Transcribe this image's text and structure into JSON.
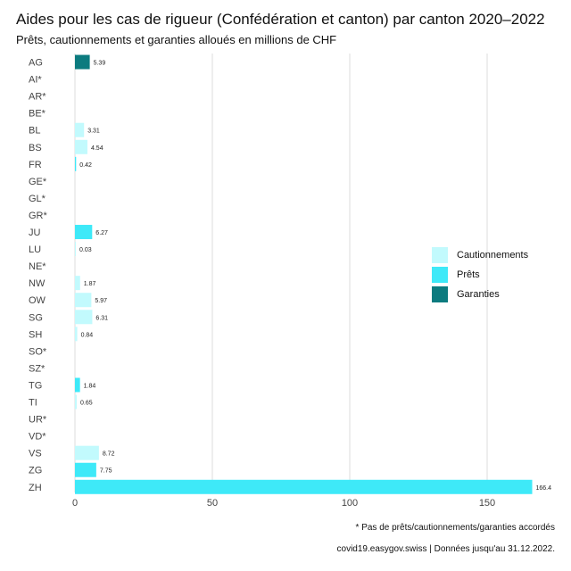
{
  "header": {
    "title": "Aides pour les cas de rigueur (Confédération et canton) par canton 2020–2022",
    "subtitle": "Prêts, cautionnements et garanties alloués en millions de CHF"
  },
  "footer": {
    "footnote": "* Pas de prêts/cautionnements/garanties accordés",
    "source": "covid19.easygov.swiss | Données jusqu'au 31.12.2022."
  },
  "legend": [
    {
      "name": "Cautionnements",
      "color": "#c2fafd"
    },
    {
      "name": "Prêts",
      "color": "#3ee9f8"
    },
    {
      "name": "Garanties",
      "color": "#0c7b7f"
    }
  ],
  "chart_data": {
    "type": "bar",
    "orientation": "horizontal",
    "xlim": [
      0,
      175
    ],
    "xticks": [
      0,
      50,
      100,
      150
    ],
    "grid": true,
    "legend_position": "right",
    "categories": [
      "AG",
      "AI*",
      "AR*",
      "BE*",
      "BL",
      "BS",
      "FR",
      "GE*",
      "GL*",
      "GR*",
      "JU",
      "LU",
      "NE*",
      "NW",
      "OW",
      "SG",
      "SH",
      "SO*",
      "SZ*",
      "TG",
      "TI",
      "UR*",
      "VD*",
      "VS",
      "ZG",
      "ZH"
    ],
    "bars": [
      {
        "category": "AG",
        "value": 5.39,
        "label": "5.39",
        "type": "Garanties"
      },
      {
        "category": "AI*",
        "value": 0,
        "label": "",
        "type": ""
      },
      {
        "category": "AR*",
        "value": 0,
        "label": "",
        "type": ""
      },
      {
        "category": "BE*",
        "value": 0,
        "label": "",
        "type": ""
      },
      {
        "category": "BL",
        "value": 3.31,
        "label": "3.31",
        "type": "Cautionnements"
      },
      {
        "category": "BS",
        "value": 4.54,
        "label": "4.54",
        "type": "Cautionnements"
      },
      {
        "category": "FR",
        "value": 0.42,
        "label": "0.42",
        "type": "Prêts"
      },
      {
        "category": "GE*",
        "value": 0,
        "label": "",
        "type": ""
      },
      {
        "category": "GL*",
        "value": 0,
        "label": "",
        "type": ""
      },
      {
        "category": "GR*",
        "value": 0,
        "label": "",
        "type": ""
      },
      {
        "category": "JU",
        "value": 6.27,
        "label": "6.27",
        "type": "Prêts"
      },
      {
        "category": "LU",
        "value": 0.03,
        "label": "0.03",
        "type": "Cautionnements"
      },
      {
        "category": "NE*",
        "value": 0,
        "label": "",
        "type": ""
      },
      {
        "category": "NW",
        "value": 1.87,
        "label": "1.87",
        "type": "Cautionnements"
      },
      {
        "category": "OW",
        "value": 5.97,
        "label": "5.97",
        "type": "Cautionnements"
      },
      {
        "category": "SG",
        "value": 6.31,
        "label": "6.31",
        "type": "Cautionnements"
      },
      {
        "category": "SH",
        "value": 0.84,
        "label": "0.84",
        "type": "Cautionnements"
      },
      {
        "category": "SO*",
        "value": 0,
        "label": "",
        "type": ""
      },
      {
        "category": "SZ*",
        "value": 0,
        "label": "",
        "type": ""
      },
      {
        "category": "TG",
        "value": 1.84,
        "label": "1.84",
        "type": "Prêts"
      },
      {
        "category": "TI",
        "value": 0.65,
        "label": "0.65",
        "type": "Cautionnements"
      },
      {
        "category": "UR*",
        "value": 0,
        "label": "",
        "type": ""
      },
      {
        "category": "VD*",
        "value": 0,
        "label": "",
        "type": ""
      },
      {
        "category": "VS",
        "value": 8.72,
        "label": "8.72",
        "type": "Cautionnements"
      },
      {
        "category": "ZG",
        "value": 7.75,
        "label": "7.75",
        "type": "Prêts"
      },
      {
        "category": "ZH",
        "value": 166.4,
        "label": "166.4",
        "type": "Prêts"
      }
    ]
  }
}
